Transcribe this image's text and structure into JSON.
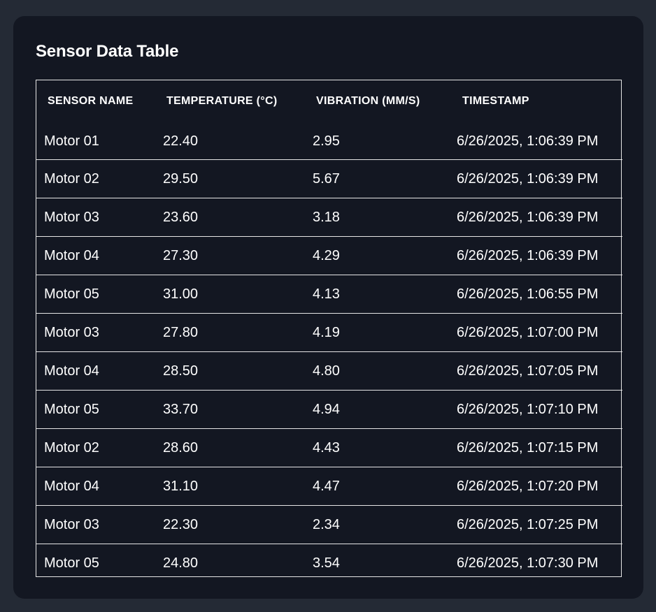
{
  "card": {
    "title": "Sensor Data Table"
  },
  "table": {
    "headers": {
      "sensor_name": "Sensor Name",
      "temperature": "Temperature (°C)",
      "vibration": "Vibration (mm/s)",
      "timestamp": "Timestamp"
    },
    "rows": [
      {
        "sensor": "Motor 01",
        "temperature": "22.40",
        "vibration": "2.95",
        "timestamp": "6/26/2025, 1:06:39 PM"
      },
      {
        "sensor": "Motor 02",
        "temperature": "29.50",
        "vibration": "5.67",
        "timestamp": "6/26/2025, 1:06:39 PM"
      },
      {
        "sensor": "Motor 03",
        "temperature": "23.60",
        "vibration": "3.18",
        "timestamp": "6/26/2025, 1:06:39 PM"
      },
      {
        "sensor": "Motor 04",
        "temperature": "27.30",
        "vibration": "4.29",
        "timestamp": "6/26/2025, 1:06:39 PM"
      },
      {
        "sensor": "Motor 05",
        "temperature": "31.00",
        "vibration": "4.13",
        "timestamp": "6/26/2025, 1:06:55 PM"
      },
      {
        "sensor": "Motor 03",
        "temperature": "27.80",
        "vibration": "4.19",
        "timestamp": "6/26/2025, 1:07:00 PM"
      },
      {
        "sensor": "Motor 04",
        "temperature": "28.50",
        "vibration": "4.80",
        "timestamp": "6/26/2025, 1:07:05 PM"
      },
      {
        "sensor": "Motor 05",
        "temperature": "33.70",
        "vibration": "4.94",
        "timestamp": "6/26/2025, 1:07:10 PM"
      },
      {
        "sensor": "Motor 02",
        "temperature": "28.60",
        "vibration": "4.43",
        "timestamp": "6/26/2025, 1:07:15 PM"
      },
      {
        "sensor": "Motor 04",
        "temperature": "31.10",
        "vibration": "4.47",
        "timestamp": "6/26/2025, 1:07:20 PM"
      },
      {
        "sensor": "Motor 03",
        "temperature": "22.30",
        "vibration": "2.34",
        "timestamp": "6/26/2025, 1:07:25 PM"
      },
      {
        "sensor": "Motor 05",
        "temperature": "24.80",
        "vibration": "3.54",
        "timestamp": "6/26/2025, 1:07:30 PM"
      }
    ]
  }
}
